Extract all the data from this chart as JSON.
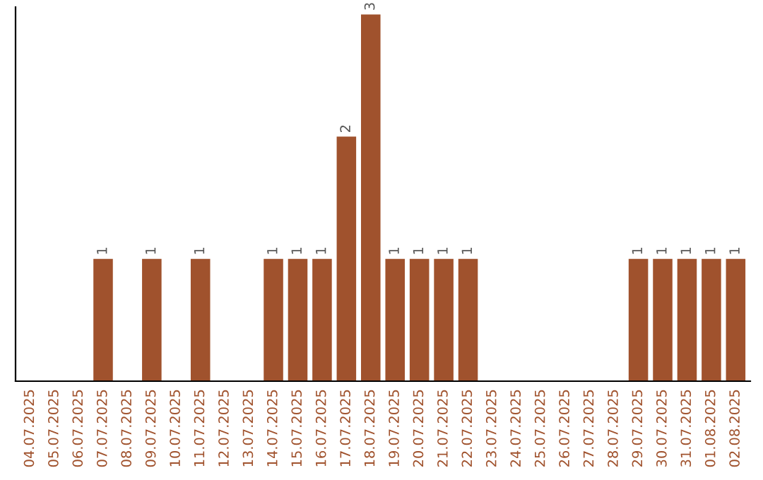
{
  "chart_data": {
    "type": "bar",
    "categories": [
      "04.07.2025",
      "05.07.2025",
      "06.07.2025",
      "07.07.2025",
      "08.07.2025",
      "09.07.2025",
      "10.07.2025",
      "11.07.2025",
      "12.07.2025",
      "13.07.2025",
      "14.07.2025",
      "15.07.2025",
      "16.07.2025",
      "17.07.2025",
      "18.07.2025",
      "19.07.2025",
      "20.07.2025",
      "21.07.2025",
      "22.07.2025",
      "23.07.2025",
      "24.07.2025",
      "25.07.2025",
      "26.07.2025",
      "27.07.2025",
      "28.07.2025",
      "29.07.2025",
      "30.07.2025",
      "31.07.2025",
      "01.08.2025",
      "02.08.2025"
    ],
    "values": [
      0,
      0,
      0,
      1,
      0,
      1,
      0,
      1,
      0,
      0,
      1,
      1,
      1,
      2,
      3,
      1,
      1,
      1,
      1,
      0,
      0,
      0,
      0,
      0,
      0,
      1,
      1,
      1,
      1,
      1
    ],
    "value_labels": [
      null,
      null,
      null,
      "1",
      null,
      "1",
      null,
      "1",
      null,
      null,
      "1",
      "1",
      "1",
      "2",
      "3",
      "1",
      "1",
      "1",
      "1",
      null,
      null,
      null,
      null,
      null,
      null,
      "1",
      "1",
      "1",
      "1",
      "1"
    ],
    "color": "#a0522d",
    "grid": false,
    "legend": false
  }
}
